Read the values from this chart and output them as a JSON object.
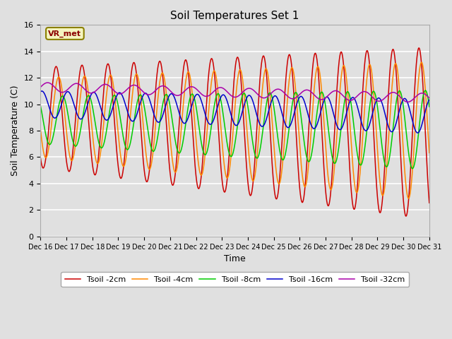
{
  "title": "Soil Temperatures Set 1",
  "xlabel": "Time",
  "ylabel": "Soil Temperature (C)",
  "ylim": [
    0,
    16
  ],
  "yticks": [
    0,
    2,
    4,
    6,
    8,
    10,
    12,
    14,
    16
  ],
  "xtick_labels": [
    "Dec 16",
    "Dec 17",
    "Dec 18",
    "Dec 19",
    "Dec 20",
    "Dec 21",
    "Dec 22",
    "Dec 23",
    "Dec 24",
    "Dec 25",
    "Dec 26",
    "Dec 27",
    "Dec 28",
    "Dec 29",
    "Dec 30",
    "Dec 31"
  ],
  "annotation_text": "VR_met",
  "line_colors": [
    "#cc0000",
    "#ff8800",
    "#00cc00",
    "#0000cc",
    "#aa00aa"
  ],
  "line_labels": [
    "Tsoil -2cm",
    "Tsoil -4cm",
    "Tsoil -8cm",
    "Tsoil -16cm",
    "Tsoil -32cm"
  ],
  "bg_color": "#e0e0e0",
  "plot_bg": "#e0e0e0",
  "grid_color": "#ffffff",
  "figsize": [
    6.4,
    4.8
  ],
  "dpi": 100
}
